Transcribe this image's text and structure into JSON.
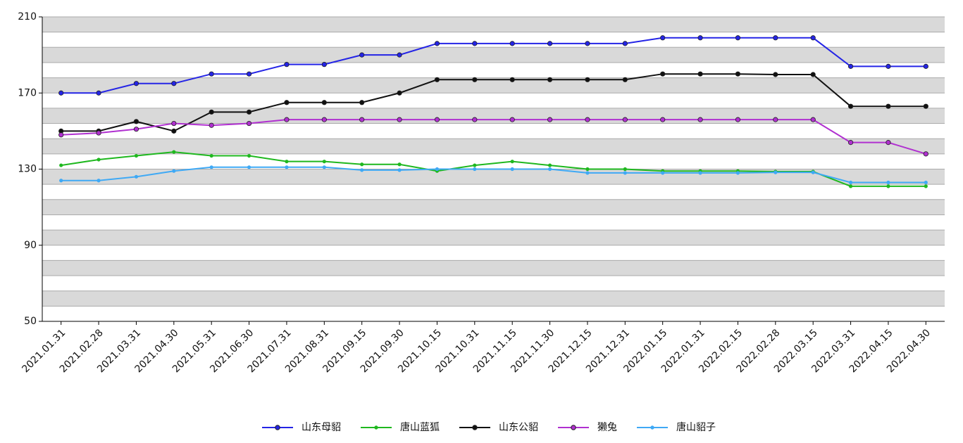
{
  "chart_data": {
    "type": "line",
    "categories": [
      "2021.01.31",
      "2021.02.28",
      "2021.03.31",
      "2021.04.30",
      "2021.05.31",
      "2021.06.30",
      "2021.07.31",
      "2021.08.31",
      "2021.09.15",
      "2021.09.30",
      "2021.10.15",
      "2021.10.31",
      "2021.11.15",
      "2021.11.30",
      "2021.12.15",
      "2021.12.31",
      "2022.01.15",
      "2022.01.31",
      "2022.02.15",
      "2022.02.28",
      "2022.03.15",
      "2022.03.31",
      "2022.04.15",
      "2022.04.30"
    ],
    "series": [
      {
        "name": "山东母貂",
        "color": "#2424e6",
        "marker": "large",
        "values": [
          170,
          170,
          175,
          175,
          180,
          180,
          185,
          185,
          190,
          190,
          196,
          196,
          196,
          196,
          196,
          196,
          199,
          199,
          199,
          199,
          199,
          184,
          184,
          184
        ]
      },
      {
        "name": "唐山蓝狐",
        "color": "#1fb81f",
        "marker": "small",
        "values": [
          132,
          135,
          137,
          139,
          137,
          137,
          134,
          134,
          132.5,
          132.5,
          129,
          132,
          134,
          132,
          130,
          130,
          129,
          129,
          129,
          128.7,
          128.7,
          121,
          121,
          121
        ]
      },
      {
        "name": "山东公貂",
        "color": "#111111",
        "marker": "large",
        "values": [
          150,
          150,
          155,
          150,
          160,
          160,
          165,
          165,
          165,
          170,
          177,
          177,
          177,
          177,
          177,
          177,
          180,
          180,
          180,
          179.7,
          179.7,
          163,
          163,
          163
        ]
      },
      {
        "name": "獭兔",
        "color": "#b030d0",
        "marker": "large",
        "values": [
          148,
          149,
          151,
          154,
          153,
          154,
          156,
          156,
          156,
          156,
          156,
          156,
          156,
          156,
          156,
          156,
          156,
          156,
          156,
          156,
          156,
          144,
          144,
          138
        ]
      },
      {
        "name": "唐山貂子",
        "color": "#3fa9f5",
        "marker": "small",
        "values": [
          124,
          124,
          126,
          129,
          131,
          131,
          131,
          131,
          129.5,
          129.5,
          130,
          130,
          130,
          130,
          128,
          128,
          128,
          128,
          128,
          128.3,
          128.3,
          123,
          123,
          123
        ]
      }
    ],
    "ylim": [
      50,
      210
    ],
    "yticks": [
      50,
      90,
      130,
      170,
      210
    ],
    "grid_lines": [
      50,
      58,
      66,
      74,
      82,
      90,
      98,
      106,
      114,
      122,
      130,
      138,
      146,
      154,
      162,
      170,
      178,
      186,
      194,
      202,
      210
    ],
    "grid": true,
    "legend": "bottom"
  }
}
